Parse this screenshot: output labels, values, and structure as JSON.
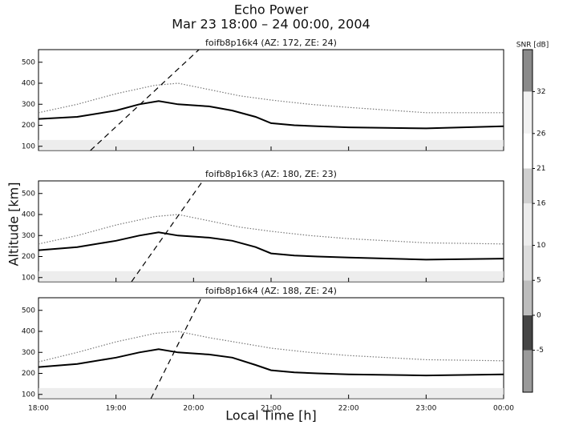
{
  "title": "Echo Power",
  "subtitle": "Mar 23 18:00 – 24 00:00, 2004",
  "xlabel": "Local Time [h]",
  "ylabel": "Altitude [km]",
  "colorbar": {
    "label": "SNR [dB]",
    "lim": [
      -11,
      38
    ],
    "ticks": [
      -5,
      0,
      5,
      10,
      16,
      21,
      26,
      32
    ],
    "colors": [
      "#9a9a9a",
      "#454545",
      "#bdbdbd",
      "#dcdcdc",
      "#ececec",
      "#cfcfcf",
      "#ffffff",
      "#f2f2f2",
      "#8a8a8a"
    ]
  },
  "chart_data": [
    {
      "type": "line",
      "title": "foifb8p16k4 (AZ: 172, ZE: 24)",
      "xlim": [
        18,
        24
      ],
      "ylim": [
        80,
        560
      ],
      "xticks": [
        18,
        19,
        20,
        21,
        22,
        23,
        24
      ],
      "yticks": [
        100,
        200,
        300,
        400,
        500
      ],
      "series": [
        {
          "color": "#000000",
          "style": "solid",
          "x": [
            18,
            18.5,
            19,
            19.3,
            19.55,
            19.8,
            20.2,
            20.5,
            20.8,
            21,
            21.3,
            21.6,
            22,
            23,
            24
          ],
          "values": [
            230,
            240,
            270,
            300,
            315,
            300,
            290,
            270,
            240,
            210,
            200,
            195,
            190,
            185,
            195
          ]
        },
        {
          "color": "#777777",
          "style": "dotted",
          "x": [
            18,
            18.5,
            19,
            19.5,
            19.8,
            20.2,
            20.6,
            21,
            21.5,
            22,
            23,
            24
          ],
          "values": [
            260,
            300,
            350,
            390,
            400,
            370,
            340,
            320,
            300,
            285,
            260,
            260
          ]
        },
        {
          "color": "#000000",
          "style": "dashed",
          "x": [
            18.67,
            20.07
          ],
          "values": [
            80,
            560
          ]
        }
      ]
    },
    {
      "type": "line",
      "title": "foifb8p16k3 (AZ: 180, ZE: 23)",
      "xlim": [
        18,
        24
      ],
      "ylim": [
        80,
        560
      ],
      "xticks": [
        18,
        19,
        20,
        21,
        22,
        23,
        24
      ],
      "yticks": [
        100,
        200,
        300,
        400,
        500
      ],
      "series": [
        {
          "color": "#000000",
          "style": "solid",
          "x": [
            18,
            18.5,
            19,
            19.3,
            19.55,
            19.8,
            20.2,
            20.5,
            20.8,
            21,
            21.3,
            21.6,
            22,
            23,
            24
          ],
          "values": [
            230,
            245,
            275,
            300,
            315,
            300,
            290,
            275,
            245,
            215,
            205,
            200,
            195,
            185,
            190
          ]
        },
        {
          "color": "#777777",
          "style": "dotted",
          "x": [
            18,
            18.5,
            19,
            19.5,
            19.8,
            20.2,
            20.6,
            21,
            21.5,
            22,
            23,
            24
          ],
          "values": [
            260,
            300,
            350,
            390,
            400,
            370,
            340,
            320,
            300,
            285,
            265,
            260
          ]
        },
        {
          "color": "#000000",
          "style": "dashed",
          "x": [
            19.2,
            20.12
          ],
          "values": [
            80,
            560
          ]
        }
      ]
    },
    {
      "type": "line",
      "title": "foifb8p16k4 (AZ: 188, ZE: 24)",
      "xlim": [
        18,
        24
      ],
      "ylim": [
        80,
        560
      ],
      "xticks": [
        {
          "value": 18,
          "label": "18:00"
        },
        {
          "value": 19,
          "label": "19:00"
        },
        {
          "value": 20,
          "label": "20:00"
        },
        {
          "value": 21,
          "label": "21:00"
        },
        {
          "value": 22,
          "label": "22:00"
        },
        {
          "value": 23,
          "label": "23:00"
        },
        {
          "value": 24,
          "label": "00:00"
        }
      ],
      "yticks": [
        100,
        200,
        300,
        400,
        500
      ],
      "series": [
        {
          "color": "#000000",
          "style": "solid",
          "x": [
            18,
            18.5,
            19,
            19.3,
            19.55,
            19.8,
            20.2,
            20.5,
            20.8,
            21,
            21.3,
            21.6,
            22,
            23,
            24
          ],
          "values": [
            230,
            245,
            275,
            300,
            315,
            300,
            290,
            275,
            240,
            215,
            205,
            200,
            195,
            190,
            195
          ]
        },
        {
          "color": "#777777",
          "style": "dotted",
          "x": [
            18,
            18.5,
            19,
            19.5,
            19.8,
            20.2,
            20.6,
            21,
            21.5,
            22,
            23,
            24
          ],
          "values": [
            255,
            300,
            350,
            390,
            400,
            370,
            345,
            320,
            300,
            285,
            265,
            260
          ]
        },
        {
          "color": "#000000",
          "style": "dashed",
          "x": [
            19.45,
            20.1
          ],
          "values": [
            80,
            560
          ]
        }
      ]
    }
  ]
}
